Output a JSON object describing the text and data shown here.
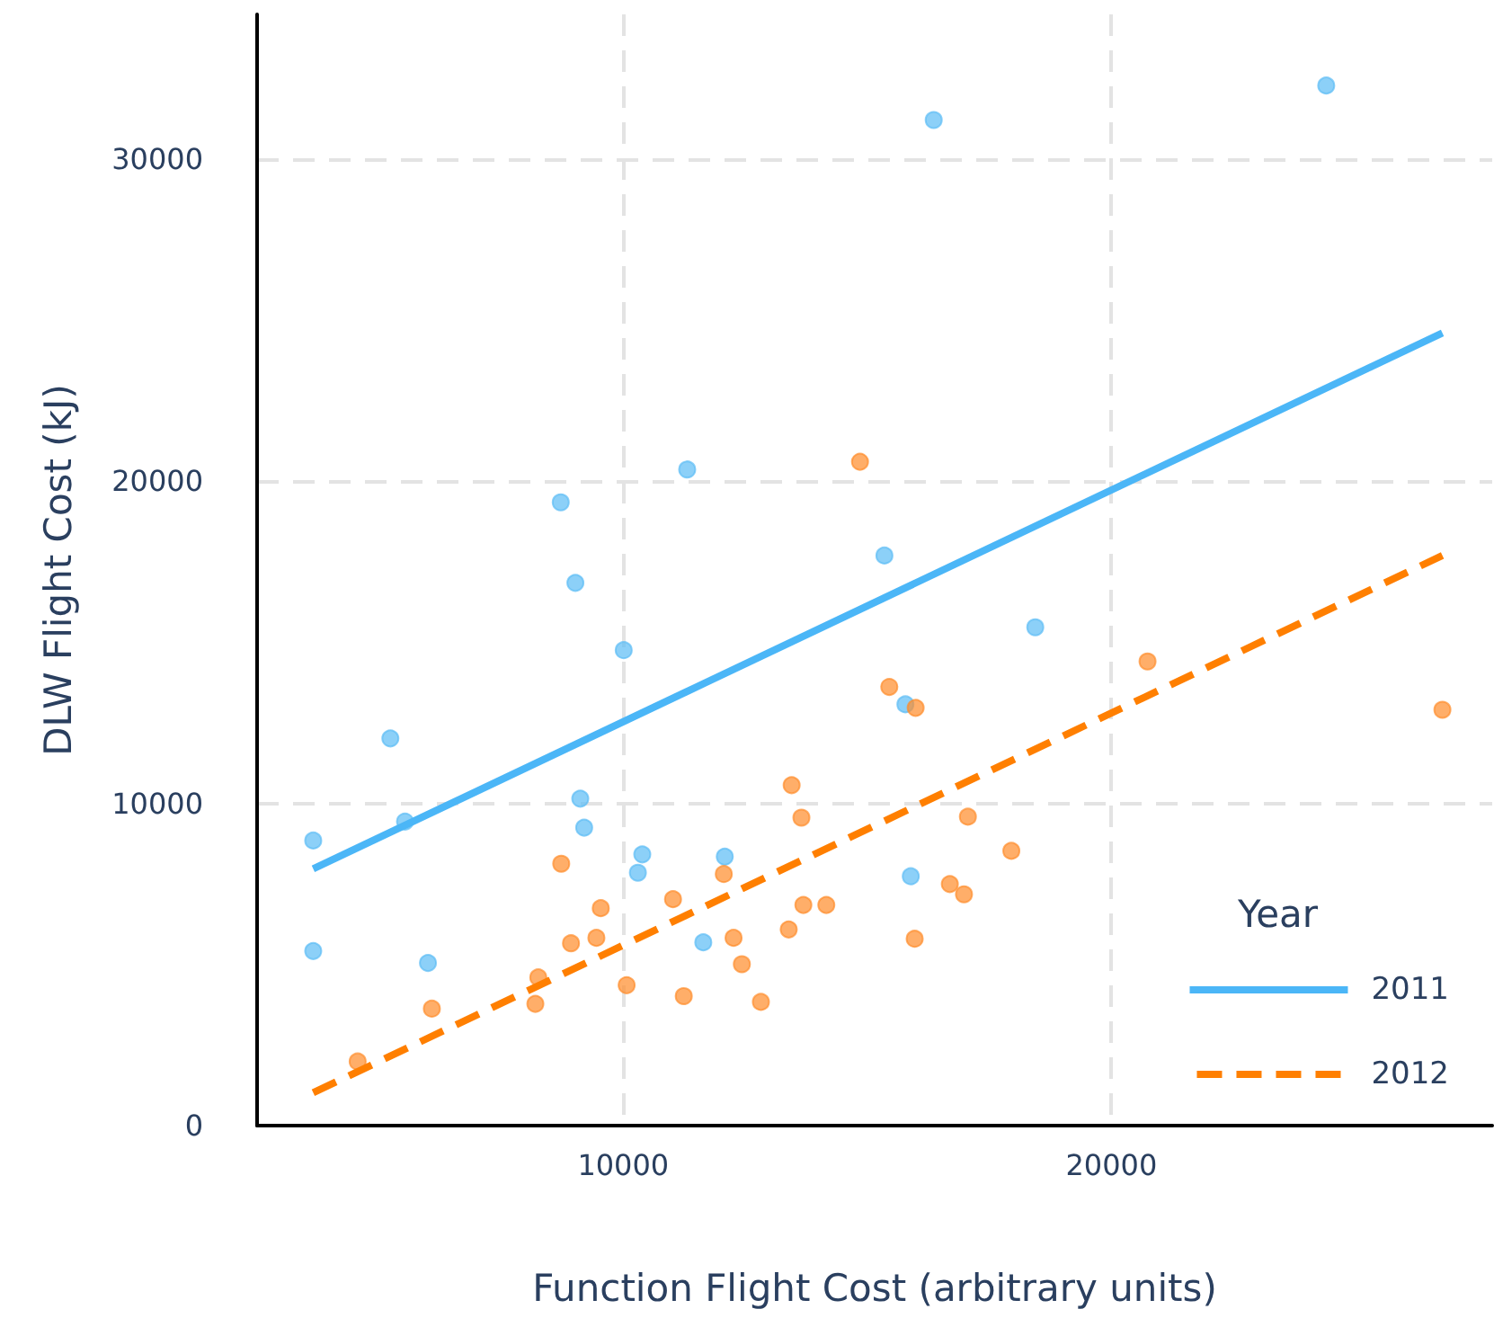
{
  "chart_data": {
    "type": "scatter",
    "xlabel": "Function Flight Cost (arbitrary units)",
    "ylabel": "DLW Flight Cost (kJ)",
    "legend_title": "Year",
    "xlim": [
      2500,
      27800
    ],
    "xticks": [
      10000,
      20000
    ],
    "ylim": [
      0,
      34500
    ],
    "yticks": [
      0,
      10000,
      20000,
      30000
    ],
    "grid": true,
    "legend": "bottom right",
    "marker": "circle",
    "series": [
      {
        "color": "#5bbcf5",
        "x": [
          3650,
          3650,
          5230,
          5530,
          6000,
          8720,
          9020,
          10010,
          9120,
          9200,
          10390,
          10300,
          11310,
          12080,
          11640,
          18440,
          15780,
          15890,
          16360,
          24400,
          15350
        ],
        "values": [
          8850,
          5420,
          12020,
          9440,
          5050,
          19350,
          16850,
          14760,
          10150,
          9250,
          8420,
          7850,
          20370,
          8350,
          5690,
          15470,
          13080,
          7740,
          31220,
          32290,
          17700
        ]
      },
      {
        "color": "#ff8c2a",
        "x": [
          8730,
          9540,
          8930,
          9450,
          8260,
          8200,
          6080,
          4560,
          10070,
          11020,
          12060,
          12260,
          12430,
          11240,
          12820,
          13450,
          13390,
          13650,
          15450,
          15990,
          17060,
          17950,
          16690,
          16980,
          13690,
          14160,
          15970,
          14850,
          20740,
          26780
        ],
        "values": [
          8130,
          6750,
          5660,
          5830,
          4600,
          3780,
          3630,
          1990,
          4360,
          7030,
          7810,
          5830,
          5010,
          4020,
          3840,
          10570,
          6090,
          9560,
          13620,
          12970,
          9590,
          8530,
          7500,
          7180,
          6850,
          6850,
          5800,
          20610,
          14410,
          12910
        ]
      },
      {
        "type": "line",
        "name": "2011",
        "color": "#4bb6f7",
        "marker": "none",
        "line_style": "solid",
        "x": [
          3650,
          26780
        ],
        "values": [
          7970,
          24610
        ]
      },
      {
        "type": "line",
        "name": "2012",
        "color": "#ff7f00",
        "marker": "none",
        "line_style": "dashed",
        "x": [
          3650,
          26780
        ],
        "values": [
          1020,
          17700
        ]
      }
    ]
  }
}
